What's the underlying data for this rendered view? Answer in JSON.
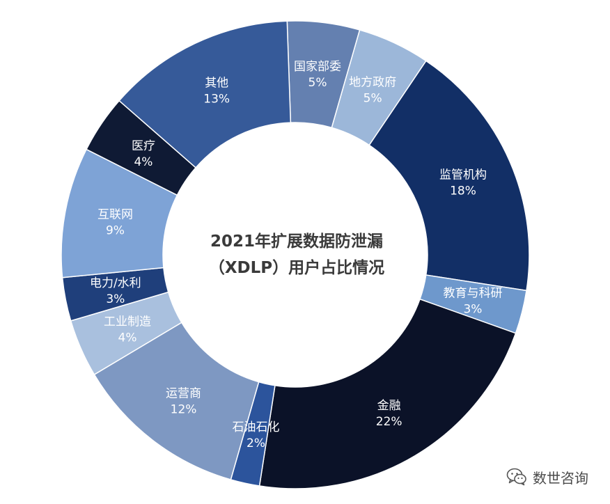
{
  "chart_data": {
    "type": "pie",
    "subtype": "donut",
    "title_lines": [
      "2021年扩展数据防泄漏",
      "（XDLP）用户占比情况"
    ],
    "unit": "%",
    "slices": [
      {
        "label": "国家部委",
        "value": 5,
        "percent_label": "5%",
        "color": "#6480b0"
      },
      {
        "label": "地方政府",
        "value": 5,
        "percent_label": "5%",
        "color": "#9cb7d9"
      },
      {
        "label": "监管机构",
        "value": 18,
        "percent_label": "18%",
        "color": "#122f66"
      },
      {
        "label": "教育与科研",
        "value": 3,
        "percent_label": "3%",
        "color": "#6e98cc"
      },
      {
        "label": "金融",
        "value": 22,
        "percent_label": "22%",
        "color": "#0b1228"
      },
      {
        "label": "石油石化",
        "value": 2,
        "percent_label": "2%",
        "color": "#2c549c"
      },
      {
        "label": "运营商",
        "value": 12,
        "percent_label": "12%",
        "color": "#7e98c2"
      },
      {
        "label": "工业制造",
        "value": 4,
        "percent_label": "4%",
        "color": "#a9c0de"
      },
      {
        "label": "电力/水利",
        "value": 3,
        "percent_label": "3%",
        "color": "#1f3f7b"
      },
      {
        "label": "互联网",
        "value": 9,
        "percent_label": "9%",
        "color": "#7ea3d6"
      },
      {
        "label": "医疗",
        "value": 4,
        "percent_label": "4%",
        "color": "#0f1a34"
      },
      {
        "label": "其他",
        "value": 13,
        "percent_label": "13%",
        "color": "#365a99"
      }
    ],
    "segment_border_color": "#ffffff"
  },
  "watermark": {
    "icon": "wechat-icon",
    "text": "数世咨询"
  }
}
